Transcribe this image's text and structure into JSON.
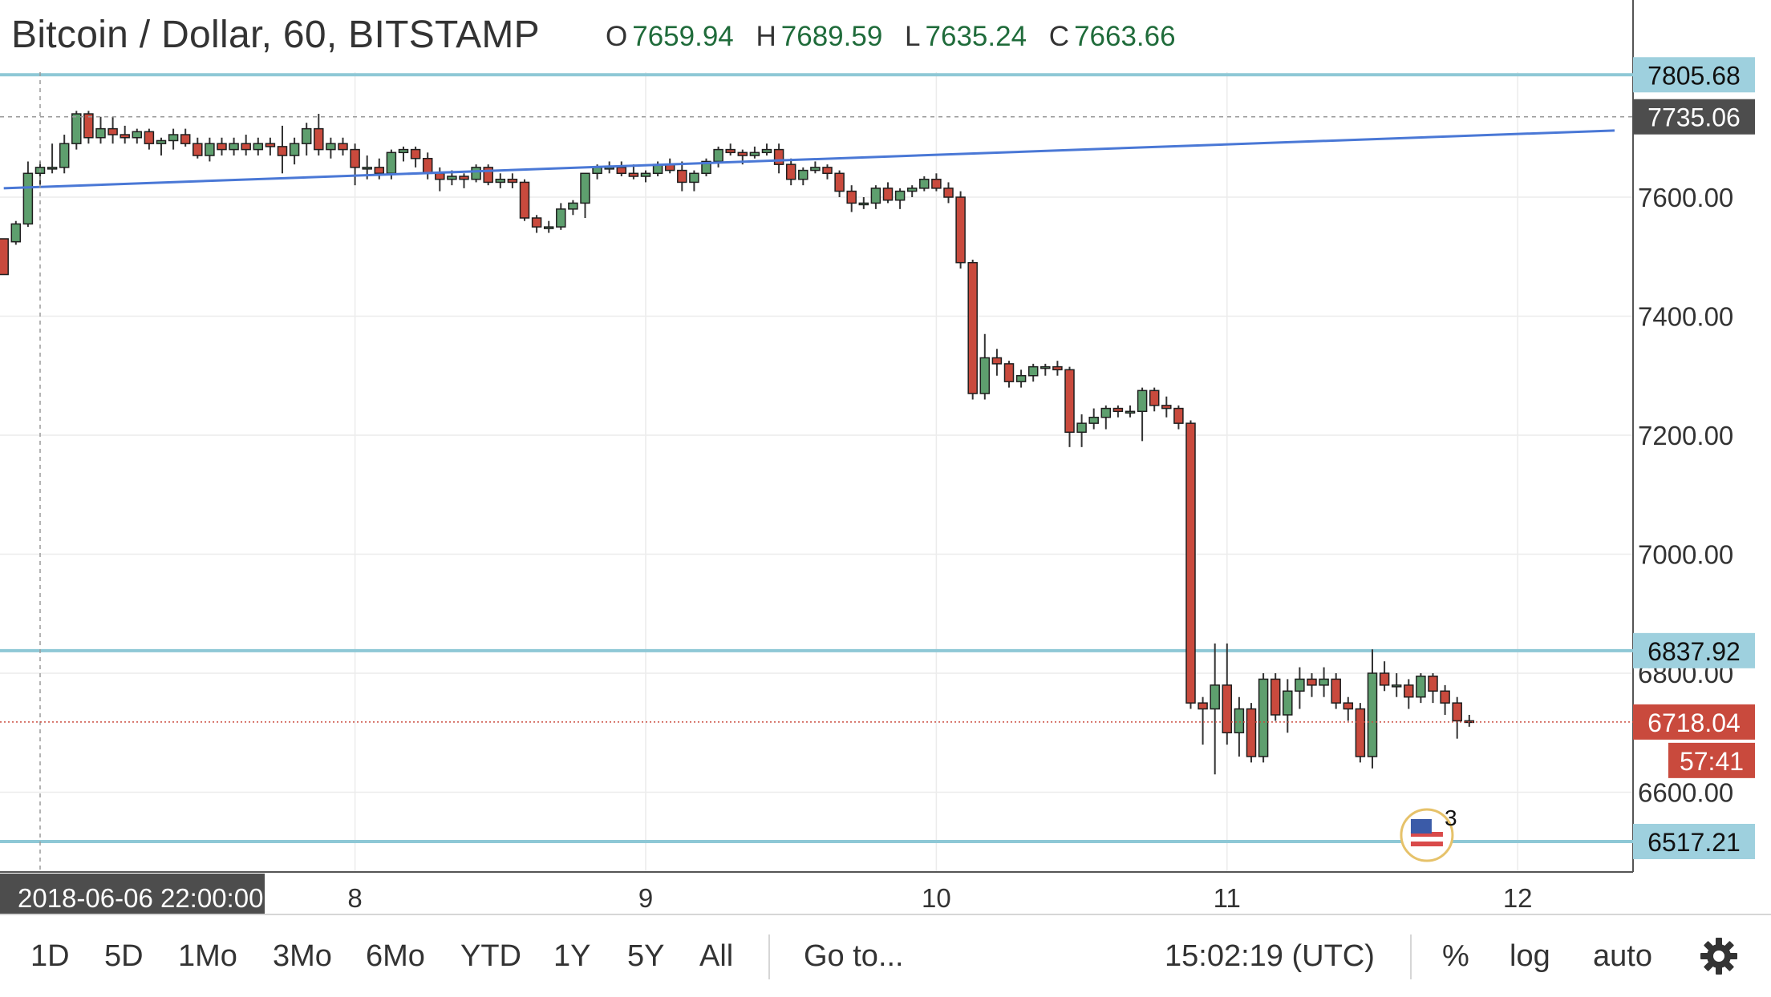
{
  "header": {
    "title": "Bitcoin / Dollar, 60, BITSTAMP",
    "ohlc": [
      {
        "key": "O",
        "value": "7659.94"
      },
      {
        "key": "H",
        "value": "7689.59"
      },
      {
        "key": "L",
        "value": "7635.24"
      },
      {
        "key": "C",
        "value": "7663.66"
      }
    ]
  },
  "chart_data": {
    "type": "candlestick",
    "symbol": "Bitcoin / Dollar",
    "interval": "60",
    "exchange": "BITSTAMP",
    "ylim": [
      6460,
      7850
    ],
    "price_ticks": [
      "7600.00",
      "7400.00",
      "7200.00",
      "7000.00",
      "6800.00",
      "6600.00"
    ],
    "price_tick_values": [
      7600,
      7400,
      7200,
      7000,
      6800,
      6600
    ],
    "x_ticks": [
      "8",
      "9",
      "10",
      "11",
      "12"
    ],
    "x_tick_times_hours": [
      26,
      50,
      74,
      98,
      122
    ],
    "crosshair_time_label": "2018-06-06 22:00:00",
    "crosshair_time_hours": 0,
    "crosshair_price_label": "7735.06",
    "crosshair_price": 7735.06,
    "last_price_label": "6718.04",
    "last_price": 6718.04,
    "countdown": "57:41",
    "horizontal_levels": [
      {
        "label": "7805.68",
        "value": 7805.68
      },
      {
        "label": "6837.92",
        "value": 6837.92
      },
      {
        "label": "6517.21",
        "value": 6517.21
      }
    ],
    "trendline": {
      "from": [
        -3,
        7615
      ],
      "to": [
        130,
        7712
      ]
    },
    "event_marker": {
      "count": "3",
      "time_hours": 114.5,
      "icon": "us-flag-icon"
    },
    "candles": [
      [
        -3,
        7530,
        7525,
        7480,
        7470
      ],
      [
        -2,
        7525,
        7560,
        7520,
        7555
      ],
      [
        -1,
        7555,
        7660,
        7550,
        7640
      ],
      [
        0,
        7640,
        7660,
        7620,
        7650
      ],
      [
        1,
        7650,
        7690,
        7640,
        7650
      ],
      [
        2,
        7650,
        7705,
        7640,
        7690
      ],
      [
        3,
        7690,
        7745,
        7680,
        7740
      ],
      [
        4,
        7740,
        7745,
        7690,
        7700
      ],
      [
        5,
        7700,
        7735,
        7690,
        7715
      ],
      [
        6,
        7715,
        7735,
        7690,
        7705
      ],
      [
        7,
        7705,
        7720,
        7690,
        7700
      ],
      [
        8,
        7700,
        7715,
        7690,
        7710
      ],
      [
        9,
        7710,
        7715,
        7680,
        7690
      ],
      [
        10,
        7690,
        7700,
        7670,
        7695
      ],
      [
        11,
        7695,
        7715,
        7680,
        7705
      ],
      [
        12,
        7705,
        7715,
        7685,
        7690
      ],
      [
        13,
        7690,
        7700,
        7665,
        7670
      ],
      [
        14,
        7670,
        7700,
        7660,
        7690
      ],
      [
        15,
        7690,
        7700,
        7670,
        7680
      ],
      [
        16,
        7680,
        7700,
        7670,
        7690
      ],
      [
        17,
        7690,
        7705,
        7670,
        7680
      ],
      [
        18,
        7680,
        7700,
        7670,
        7690
      ],
      [
        19,
        7690,
        7700,
        7670,
        7685
      ],
      [
        20,
        7685,
        7720,
        7640,
        7670
      ],
      [
        21,
        7670,
        7700,
        7655,
        7690
      ],
      [
        22,
        7690,
        7725,
        7670,
        7715
      ],
      [
        23,
        7715,
        7740,
        7670,
        7680
      ],
      [
        24,
        7680,
        7700,
        7665,
        7690
      ],
      [
        25,
        7690,
        7700,
        7670,
        7680
      ],
      [
        26,
        7680,
        7690,
        7620,
        7650
      ],
      [
        27,
        7650,
        7670,
        7630,
        7650
      ],
      [
        28,
        7650,
        7665,
        7630,
        7640
      ],
      [
        29,
        7640,
        7680,
        7630,
        7675
      ],
      [
        30,
        7675,
        7685,
        7660,
        7680
      ],
      [
        31,
        7680,
        7685,
        7650,
        7665
      ],
      [
        32,
        7665,
        7675,
        7630,
        7640
      ],
      [
        33,
        7640,
        7650,
        7610,
        7630
      ],
      [
        34,
        7630,
        7645,
        7620,
        7635
      ],
      [
        35,
        7635,
        7640,
        7615,
        7630
      ],
      [
        36,
        7630,
        7655,
        7625,
        7650
      ],
      [
        37,
        7650,
        7655,
        7620,
        7625
      ],
      [
        38,
        7625,
        7640,
        7615,
        7630
      ],
      [
        39,
        7630,
        7640,
        7615,
        7625
      ],
      [
        40,
        7625,
        7630,
        7560,
        7565
      ],
      [
        41,
        7565,
        7570,
        7540,
        7550
      ],
      [
        42,
        7550,
        7560,
        7540,
        7550
      ],
      [
        43,
        7550,
        7590,
        7545,
        7580
      ],
      [
        44,
        7580,
        7595,
        7570,
        7590
      ],
      [
        45,
        7590,
        7640,
        7565,
        7640
      ],
      [
        46,
        7640,
        7655,
        7630,
        7650
      ],
      [
        47,
        7650,
        7660,
        7640,
        7650
      ],
      [
        48,
        7650,
        7660,
        7635,
        7640
      ],
      [
        49,
        7640,
        7655,
        7630,
        7635
      ],
      [
        50,
        7635,
        7645,
        7625,
        7640
      ],
      [
        51,
        7640,
        7660,
        7635,
        7655
      ],
      [
        52,
        7655,
        7665,
        7640,
        7645
      ],
      [
        53,
        7645,
        7660,
        7610,
        7625
      ],
      [
        54,
        7625,
        7645,
        7610,
        7640
      ],
      [
        55,
        7640,
        7665,
        7635,
        7660
      ],
      [
        56,
        7660,
        7685,
        7650,
        7680
      ],
      [
        57,
        7680,
        7690,
        7670,
        7675
      ],
      [
        58,
        7675,
        7680,
        7655,
        7670
      ],
      [
        59,
        7670,
        7685,
        7665,
        7675
      ],
      [
        60,
        7675,
        7690,
        7670,
        7680
      ],
      [
        61,
        7680,
        7690,
        7640,
        7655
      ],
      [
        62,
        7655,
        7665,
        7620,
        7630
      ],
      [
        63,
        7630,
        7650,
        7620,
        7645
      ],
      [
        64,
        7645,
        7660,
        7640,
        7650
      ],
      [
        65,
        7650,
        7655,
        7630,
        7640
      ],
      [
        66,
        7640,
        7645,
        7600,
        7610
      ],
      [
        67,
        7610,
        7620,
        7575,
        7590
      ],
      [
        68,
        7590,
        7600,
        7580,
        7590
      ],
      [
        69,
        7590,
        7620,
        7580,
        7615
      ],
      [
        70,
        7615,
        7625,
        7590,
        7595
      ],
      [
        71,
        7595,
        7615,
        7580,
        7610
      ],
      [
        72,
        7610,
        7620,
        7600,
        7615
      ],
      [
        73,
        7615,
        7635,
        7610,
        7630
      ],
      [
        74,
        7630,
        7640,
        7610,
        7615
      ],
      [
        75,
        7615,
        7625,
        7590,
        7600
      ],
      [
        76,
        7600,
        7610,
        7480,
        7490
      ],
      [
        77,
        7490,
        7495,
        7260,
        7270
      ],
      [
        78,
        7270,
        7370,
        7260,
        7330
      ],
      [
        79,
        7330,
        7345,
        7300,
        7320
      ],
      [
        80,
        7320,
        7325,
        7280,
        7290
      ],
      [
        81,
        7290,
        7310,
        7280,
        7300
      ],
      [
        82,
        7300,
        7320,
        7290,
        7315
      ],
      [
        83,
        7315,
        7320,
        7300,
        7315
      ],
      [
        84,
        7315,
        7325,
        7300,
        7310
      ],
      [
        85,
        7310,
        7315,
        7180,
        7205
      ],
      [
        86,
        7205,
        7235,
        7180,
        7220
      ],
      [
        87,
        7220,
        7245,
        7210,
        7230
      ],
      [
        88,
        7230,
        7250,
        7210,
        7245
      ],
      [
        89,
        7245,
        7250,
        7230,
        7240
      ],
      [
        90,
        7240,
        7250,
        7230,
        7240
      ],
      [
        91,
        7240,
        7280,
        7190,
        7275
      ],
      [
        92,
        7275,
        7280,
        7240,
        7250
      ],
      [
        93,
        7250,
        7265,
        7230,
        7245
      ],
      [
        94,
        7245,
        7250,
        7210,
        7220
      ],
      [
        95,
        7220,
        7225,
        6740,
        6750
      ],
      [
        96,
        6750,
        6760,
        6680,
        6740
      ],
      [
        97,
        6740,
        6850,
        6630,
        6780
      ],
      [
        98,
        6780,
        6850,
        6680,
        6700
      ],
      [
        99,
        6700,
        6760,
        6660,
        6740
      ],
      [
        100,
        6740,
        6750,
        6650,
        6660
      ],
      [
        101,
        6660,
        6800,
        6650,
        6790
      ],
      [
        102,
        6790,
        6800,
        6720,
        6730
      ],
      [
        103,
        6730,
        6790,
        6700,
        6770
      ],
      [
        104,
        6770,
        6810,
        6740,
        6790
      ],
      [
        105,
        6790,
        6800,
        6760,
        6780
      ],
      [
        106,
        6780,
        6810,
        6760,
        6790
      ],
      [
        107,
        6790,
        6800,
        6740,
        6750
      ],
      [
        108,
        6750,
        6760,
        6720,
        6740
      ],
      [
        109,
        6740,
        6750,
        6650,
        6660
      ],
      [
        110,
        6660,
        6840,
        6640,
        6800
      ],
      [
        111,
        6800,
        6820,
        6770,
        6780
      ],
      [
        112,
        6780,
        6800,
        6760,
        6780
      ],
      [
        113,
        6780,
        6790,
        6740,
        6760
      ],
      [
        114,
        6760,
        6800,
        6750,
        6795
      ],
      [
        115,
        6795,
        6800,
        6750,
        6770
      ],
      [
        116,
        6770,
        6780,
        6730,
        6750
      ],
      [
        117,
        6750,
        6760,
        6690,
        6720
      ],
      [
        118,
        6720,
        6730,
        6710,
        6718
      ]
    ]
  },
  "toolbar": {
    "ranges": [
      "1D",
      "5D",
      "1Mo",
      "3Mo",
      "6Mo",
      "YTD",
      "1Y",
      "5Y",
      "All"
    ],
    "goto": "Go to...",
    "clock": "15:02:19 (UTC)",
    "percent": "%",
    "log": "log",
    "auto": "auto",
    "settings_icon": "gear-icon"
  },
  "colors": {
    "up": "#5e9f6e",
    "down": "#c94a3d",
    "candle_border": "#1e1e1e",
    "level_line": "#8ec8d6",
    "level_label_bg": "#9ed0de",
    "trendline": "#4a78d6",
    "crosshair_label_bg": "#4d4d4d",
    "last_price_bg": "#c94a3d",
    "grid": "#ececec"
  }
}
